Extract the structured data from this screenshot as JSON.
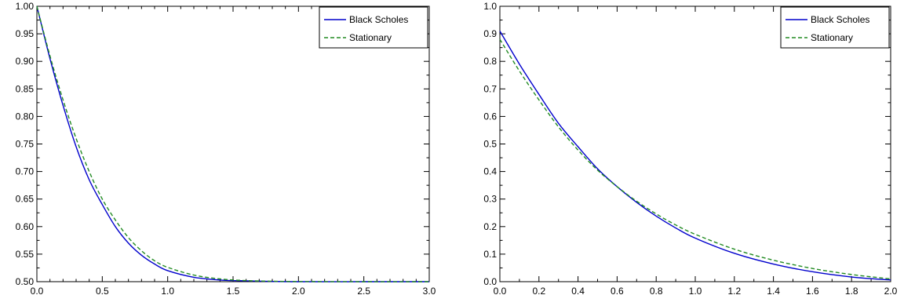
{
  "chart_data": [
    {
      "type": "line",
      "xlim": [
        0,
        3
      ],
      "ylim": [
        0.5,
        1.0
      ],
      "x_ticks": [
        "0.0",
        "0.5",
        "1.0",
        "1.5",
        "2.0",
        "2.5",
        "3.0"
      ],
      "x_tick_values": [
        0,
        0.5,
        1.0,
        1.5,
        2.0,
        2.5,
        3.0
      ],
      "y_ticks": [
        "0.50",
        "0.55",
        "0.60",
        "0.65",
        "0.70",
        "0.75",
        "0.80",
        "0.85",
        "0.90",
        "0.95",
        "1.00"
      ],
      "y_tick_values": [
        0.5,
        0.55,
        0.6,
        0.65,
        0.7,
        0.75,
        0.8,
        0.85,
        0.9,
        0.95,
        1.0
      ],
      "grid": false,
      "legend_position": "top-right",
      "x": [
        0.0,
        0.1,
        0.2,
        0.3,
        0.4,
        0.5,
        0.6,
        0.7,
        0.8,
        0.9,
        1.0,
        1.2,
        1.4,
        1.6,
        1.8,
        2.0,
        2.5,
        3.0
      ],
      "series": [
        {
          "name": "Black Scholes",
          "color": "#0000cc",
          "style": "solid",
          "values": [
            1.0,
            0.905,
            0.82,
            0.745,
            0.685,
            0.64,
            0.6,
            0.57,
            0.548,
            0.532,
            0.52,
            0.508,
            0.503,
            0.5015,
            0.5005,
            0.5,
            0.5,
            0.5
          ]
        },
        {
          "name": "Stationary",
          "color": "#228b22",
          "style": "dashed",
          "values": [
            1.0,
            0.91,
            0.83,
            0.76,
            0.7,
            0.65,
            0.612,
            0.58,
            0.556,
            0.538,
            0.526,
            0.512,
            0.505,
            0.502,
            0.5008,
            0.5003,
            0.5,
            0.5
          ]
        }
      ]
    },
    {
      "type": "line",
      "xlim": [
        0,
        2
      ],
      "ylim": [
        0.0,
        1.0
      ],
      "x_ticks": [
        "0.0",
        "0.2",
        "0.4",
        "0.6",
        "0.8",
        "1.0",
        "1.2",
        "1.4",
        "1.6",
        "1.8",
        "2.0"
      ],
      "x_tick_values": [
        0,
        0.2,
        0.4,
        0.6,
        0.8,
        1.0,
        1.2,
        1.4,
        1.6,
        1.8,
        2.0
      ],
      "y_ticks": [
        "0.0",
        "0.1",
        "0.2",
        "0.3",
        "0.4",
        "0.5",
        "0.6",
        "0.7",
        "0.8",
        "0.9",
        "1.0"
      ],
      "y_tick_values": [
        0,
        0.1,
        0.2,
        0.3,
        0.4,
        0.5,
        0.6,
        0.7,
        0.8,
        0.9,
        1.0
      ],
      "grid": false,
      "legend_position": "top-right",
      "x": [
        0.0,
        0.1,
        0.2,
        0.3,
        0.4,
        0.5,
        0.6,
        0.7,
        0.8,
        0.9,
        1.0,
        1.2,
        1.4,
        1.6,
        1.8,
        2.0
      ],
      "series": [
        {
          "name": "Black Scholes",
          "color": "#0000cc",
          "style": "solid",
          "values": [
            0.91,
            0.79,
            0.68,
            0.575,
            0.49,
            0.41,
            0.345,
            0.288,
            0.238,
            0.195,
            0.158,
            0.103,
            0.064,
            0.036,
            0.017,
            0.006
          ]
        },
        {
          "name": "Stationary",
          "color": "#228b22",
          "style": "dashed",
          "values": [
            0.88,
            0.765,
            0.66,
            0.562,
            0.478,
            0.405,
            0.345,
            0.292,
            0.246,
            0.206,
            0.172,
            0.118,
            0.078,
            0.048,
            0.026,
            0.01
          ]
        }
      ]
    }
  ]
}
